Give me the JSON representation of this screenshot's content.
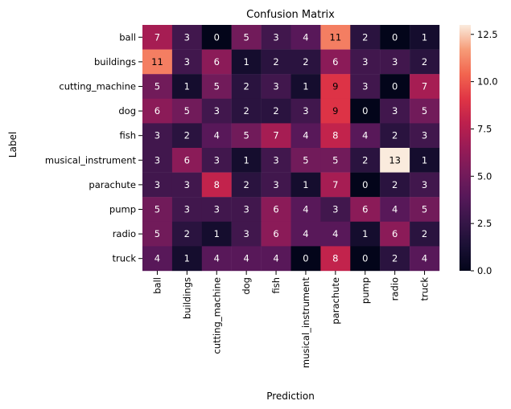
{
  "chart_data": {
    "type": "heatmap",
    "title": "Confusion Matrix",
    "xlabel": "Prediction",
    "ylabel": "Label",
    "x_categories": [
      "ball",
      "buildings",
      "cutting_machine",
      "dog",
      "fish",
      "musical_instrument",
      "parachute",
      "pump",
      "radio",
      "truck"
    ],
    "y_categories": [
      "ball",
      "buildings",
      "cutting_machine",
      "dog",
      "fish",
      "musical_instrument",
      "parachute",
      "pump",
      "radio",
      "truck"
    ],
    "values": [
      [
        7,
        3,
        0,
        5,
        3,
        4,
        11,
        2,
        0,
        1
      ],
      [
        11,
        3,
        6,
        1,
        2,
        2,
        6,
        3,
        3,
        2
      ],
      [
        5,
        1,
        5,
        2,
        3,
        1,
        9,
        3,
        0,
        7
      ],
      [
        6,
        5,
        3,
        2,
        2,
        3,
        9,
        0,
        3,
        5
      ],
      [
        3,
        2,
        4,
        5,
        7,
        4,
        8,
        4,
        2,
        3
      ],
      [
        3,
        6,
        3,
        1,
        3,
        5,
        5,
        2,
        13,
        1
      ],
      [
        3,
        3,
        8,
        2,
        3,
        1,
        7,
        0,
        2,
        3
      ],
      [
        5,
        3,
        3,
        3,
        6,
        4,
        3,
        6,
        4,
        5
      ],
      [
        5,
        2,
        1,
        3,
        6,
        4,
        4,
        1,
        6,
        2
      ],
      [
        4,
        1,
        4,
        4,
        4,
        0,
        8,
        0,
        2,
        4
      ]
    ],
    "colorbar": {
      "min": 0,
      "max": 13,
      "ticks": [
        0.0,
        2.5,
        5.0,
        7.5,
        10.0,
        12.5
      ],
      "tick_labels": [
        "0.0",
        "2.5",
        "5.0",
        "7.5",
        "10.0",
        "12.5"
      ]
    },
    "colormap": "rocket",
    "grid": false,
    "legend": "colorbar-right"
  }
}
